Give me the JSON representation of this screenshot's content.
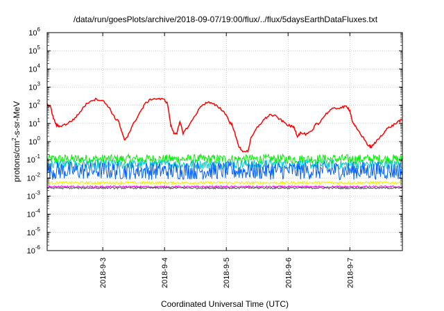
{
  "chart_data": {
    "type": "line",
    "title": "/data/run/goesPlots/archive/2018-09-07/19:00/flux/../flux/5daysEarthDataFluxes.txt",
    "xlabel": "Coordinated Universal Time (UTC)",
    "ylabel_parts": {
      "base": "protons/cm",
      "sup": "2",
      "rest": "-s-sr-MeV"
    },
    "y_scale": "log",
    "ylim_exp": [
      -6,
      6
    ],
    "y_ticks": [
      {
        "exp": -6,
        "base": "10",
        "sup": "-6"
      },
      {
        "exp": -5,
        "base": "10",
        "sup": "-5"
      },
      {
        "exp": -4,
        "base": "10",
        "sup": "-4"
      },
      {
        "exp": -3,
        "base": "10",
        "sup": "-3"
      },
      {
        "exp": -2,
        "base": "10",
        "sup": "-2"
      },
      {
        "exp": -1,
        "base": "10",
        "sup": "-1"
      },
      {
        "exp": 0,
        "base": "10",
        "sup": "0"
      },
      {
        "exp": 1,
        "base": "10",
        "sup": "1"
      },
      {
        "exp": 2,
        "base": "10",
        "sup": "2"
      },
      {
        "exp": 3,
        "base": "10",
        "sup": "3"
      },
      {
        "exp": 4,
        "base": "10",
        "sup": "4"
      },
      {
        "exp": 5,
        "base": "10",
        "sup": "5"
      },
      {
        "exp": 6,
        "base": "10",
        "sup": "6"
      }
    ],
    "xlim_days": [
      2.1,
      7.85
    ],
    "x_ticks": [
      {
        "day": 3,
        "label": "2018-9-3"
      },
      {
        "day": 4,
        "label": "2018-9-4"
      },
      {
        "day": 5,
        "label": "2018-9-5"
      },
      {
        "day": 6,
        "label": "2018-9-6"
      },
      {
        "day": 7,
        "label": "2018-9-7"
      }
    ],
    "grid": true,
    "series": [
      {
        "color": "#ff0000",
        "points": [
          [
            2.1,
            100
          ],
          [
            2.15,
            90
          ],
          [
            2.2,
            20
          ],
          [
            2.25,
            8
          ],
          [
            2.3,
            7
          ],
          [
            2.4,
            9
          ],
          [
            2.5,
            14
          ],
          [
            2.6,
            30
          ],
          [
            2.7,
            90
          ],
          [
            2.8,
            180
          ],
          [
            2.9,
            220
          ],
          [
            3.0,
            180
          ],
          [
            3.1,
            80
          ],
          [
            3.2,
            18
          ],
          [
            3.25,
            15
          ],
          [
            3.3,
            4
          ],
          [
            3.35,
            1.2
          ],
          [
            3.4,
            2
          ],
          [
            3.5,
            10
          ],
          [
            3.6,
            40
          ],
          [
            3.7,
            140
          ],
          [
            3.8,
            230
          ],
          [
            3.9,
            230
          ],
          [
            4.0,
            200
          ],
          [
            4.05,
            120
          ],
          [
            4.1,
            8
          ],
          [
            4.15,
            3
          ],
          [
            4.2,
            3
          ],
          [
            4.25,
            12
          ],
          [
            4.3,
            3
          ],
          [
            4.4,
            8
          ],
          [
            4.5,
            30
          ],
          [
            4.6,
            100
          ],
          [
            4.7,
            150
          ],
          [
            4.8,
            110
          ],
          [
            4.9,
            70
          ],
          [
            5.0,
            30
          ],
          [
            5.05,
            12
          ],
          [
            5.1,
            8
          ],
          [
            5.15,
            2
          ],
          [
            5.2,
            0.6
          ],
          [
            5.25,
            0.3
          ],
          [
            5.35,
            0.3
          ],
          [
            5.4,
            1.5
          ],
          [
            5.5,
            6
          ],
          [
            5.6,
            15
          ],
          [
            5.7,
            30
          ],
          [
            5.8,
            25
          ],
          [
            5.9,
            14
          ],
          [
            6.0,
            8
          ],
          [
            6.05,
            7
          ],
          [
            6.1,
            6
          ],
          [
            6.15,
            2
          ],
          [
            6.2,
            3
          ],
          [
            6.3,
            2.5
          ],
          [
            6.4,
            4
          ],
          [
            6.45,
            10
          ],
          [
            6.5,
            10
          ],
          [
            6.6,
            30
          ],
          [
            6.7,
            60
          ],
          [
            6.8,
            70
          ],
          [
            6.9,
            80
          ],
          [
            6.95,
            90
          ],
          [
            7.0,
            50
          ],
          [
            7.05,
            10
          ],
          [
            7.1,
            6
          ],
          [
            7.2,
            2
          ],
          [
            7.3,
            0.6
          ],
          [
            7.35,
            0.5
          ],
          [
            7.4,
            0.8
          ],
          [
            7.5,
            2
          ],
          [
            7.6,
            5
          ],
          [
            7.7,
            8
          ],
          [
            7.8,
            14
          ],
          [
            7.85,
            15
          ]
        ]
      },
      {
        "color": "#00ee00",
        "band": [
          0.06,
          0.2
        ]
      },
      {
        "color": "#00c8c8",
        "band": [
          0.03,
          0.1
        ]
      },
      {
        "color": "#0060ff",
        "band": [
          0.008,
          0.08
        ]
      },
      {
        "color": "#eeee00",
        "band": [
          0.0045,
          0.0065
        ]
      },
      {
        "color": "#ff00ff",
        "band": [
          0.0029,
          0.0037
        ]
      },
      {
        "color": "#555555",
        "band": [
          0.0025,
          0.0031
        ]
      }
    ]
  }
}
